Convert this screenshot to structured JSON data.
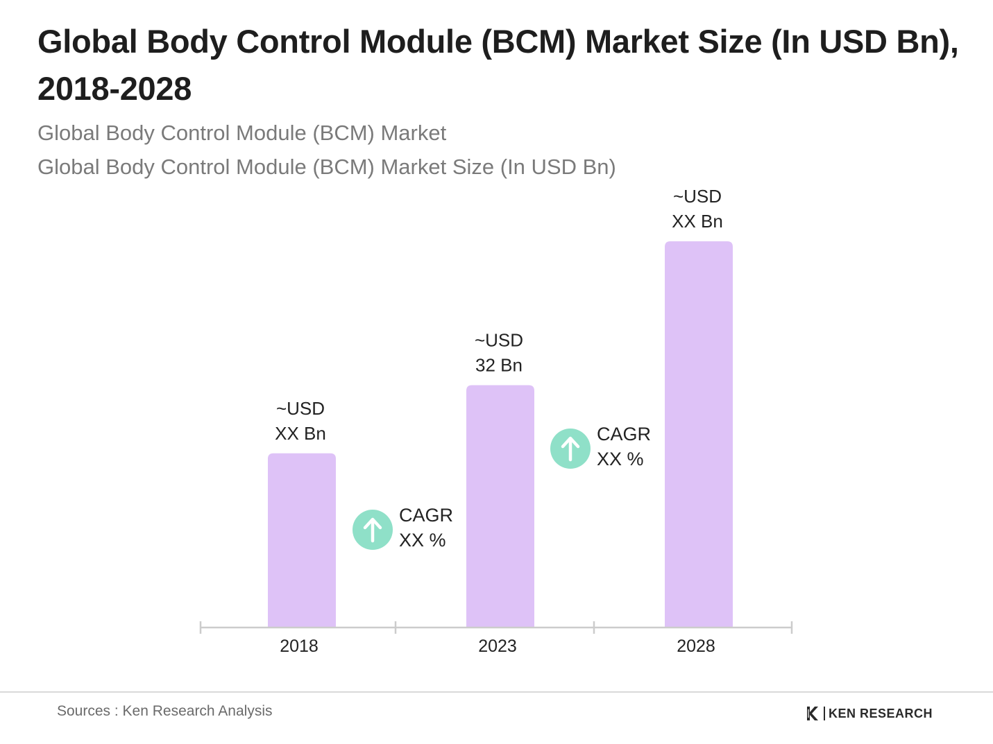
{
  "title": "Global Body Control Module (BCM) Market Size (In USD Bn), 2018-2028",
  "subtitle_1": "Global Body Control Module (BCM) Market",
  "subtitle_2": "Global Body Control Module (BCM) Market Size (In USD Bn)",
  "colors": {
    "bar": "#dec2f7",
    "axis": "#cccccc",
    "cagr_circle": "#8fe0c8",
    "cagr_arrow": "#ffffff"
  },
  "chart_data": {
    "type": "bar",
    "categories": [
      "2018",
      "2023",
      "2028"
    ],
    "values": [
      23,
      32,
      51
    ],
    "value_labels": [
      [
        "~USD",
        "XX Bn"
      ],
      [
        "~USD",
        "32 Bn"
      ],
      [
        "~USD",
        "XX Bn"
      ]
    ],
    "ylim": [
      0,
      51
    ],
    "grid": false,
    "legend": "none",
    "annotations": [
      {
        "between": [
          "2018",
          "2023"
        ],
        "lines": [
          "CAGR",
          "XX %"
        ],
        "icon": "arrow-up-icon"
      },
      {
        "between": [
          "2023",
          "2028"
        ],
        "lines": [
          "CAGR",
          "XX %"
        ],
        "icon": "arrow-up-icon"
      }
    ]
  },
  "footer": {
    "sources": "Sources : Ken Research Analysis",
    "logo_text": "KEN RESEARCH"
  }
}
